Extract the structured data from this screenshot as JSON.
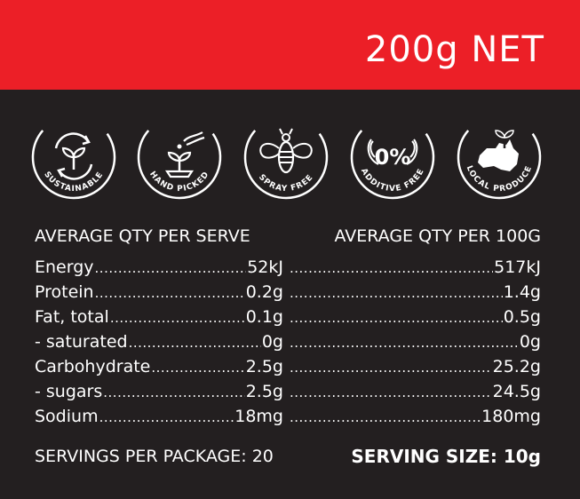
{
  "header": {
    "net_weight": "200g NET",
    "color": "#ec1f27"
  },
  "badges": [
    {
      "label": "SUSTAINABLE",
      "icon": "recycle-sprout-icon"
    },
    {
      "label": "HAND PICKED",
      "icon": "hand-sprout-icon"
    },
    {
      "label": "SPRAY FREE",
      "icon": "bee-icon"
    },
    {
      "label": "ADDITIVE FREE",
      "icon": "zero-percent-icon",
      "center": "0%"
    },
    {
      "label": "LOCAL PRODUCE",
      "icon": "australia-sprout-icon"
    }
  ],
  "nutrition": {
    "col1_header": "AVERAGE QTY PER SERVE",
    "col2_header": "AVERAGE QTY PER 100G",
    "rows": [
      {
        "label": "Energy",
        "per_serve": "52kJ",
        "per_100g": "517kJ"
      },
      {
        "label": "Protein",
        "per_serve": "0.2g",
        "per_100g": "1.4g"
      },
      {
        "label": "Fat, total",
        "per_serve": "0.1g",
        "per_100g": "0.5g"
      },
      {
        "label": "- saturated",
        "per_serve": "0g",
        "per_100g": "0g"
      },
      {
        "label": "Carbohydrate",
        "per_serve": "2.5g",
        "per_100g": "25.2g"
      },
      {
        "label": "- sugars",
        "per_serve": "2.5g",
        "per_100g": "24.5g"
      },
      {
        "label": "Sodium",
        "per_serve": "18mg",
        "per_100g": "180mg"
      }
    ]
  },
  "footer": {
    "servings": "SERVINGS PER PACKAGE: 20",
    "serving_size": "SERVING SIZE: 10g"
  }
}
